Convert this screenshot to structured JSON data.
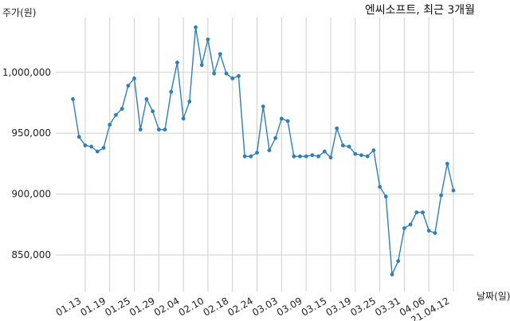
{
  "chart_data": {
    "type": "line",
    "title": "엔씨소프트, 최근 3개월",
    "xlabel": "날짜(일)",
    "ylabel": "주가(원)",
    "color": "#2e7fb8",
    "grid": true,
    "ylim": [
      820000,
      1045000
    ],
    "yticks": [
      850000,
      900000,
      950000,
      1000000
    ],
    "ytick_labels": [
      "850,000",
      "900,000",
      "950,000",
      "1,000,000"
    ],
    "xtick_labels": [
      "01.13",
      "01.19",
      "01.25",
      "01.29",
      "02.04",
      "02.10",
      "02.18",
      "02.24",
      "03.03",
      "03.09",
      "03.15",
      "03.19",
      "03.25",
      "03.31",
      "04.06",
      "21.04.12"
    ],
    "xtick_index": [
      2,
      6,
      10,
      14,
      18,
      22,
      26,
      30,
      34,
      38,
      42,
      46,
      50,
      54,
      58,
      62
    ],
    "values": [
      978000,
      947000,
      940000,
      939000,
      935000,
      938000,
      957000,
      965000,
      970000,
      989000,
      995000,
      953000,
      978000,
      968000,
      953000,
      953000,
      984000,
      1008000,
      962000,
      976000,
      1037000,
      1006000,
      1027000,
      999000,
      1015000,
      999000,
      995000,
      997000,
      931000,
      931000,
      934000,
      972000,
      936000,
      946000,
      962000,
      960000,
      931000,
      931000,
      931000,
      932000,
      931000,
      935000,
      930000,
      954000,
      940000,
      939000,
      933000,
      932000,
      931000,
      936000,
      906000,
      898000,
      834000,
      845000,
      872000,
      875000,
      885000,
      885000,
      870000,
      868000,
      899000,
      925000,
      903000
    ]
  }
}
